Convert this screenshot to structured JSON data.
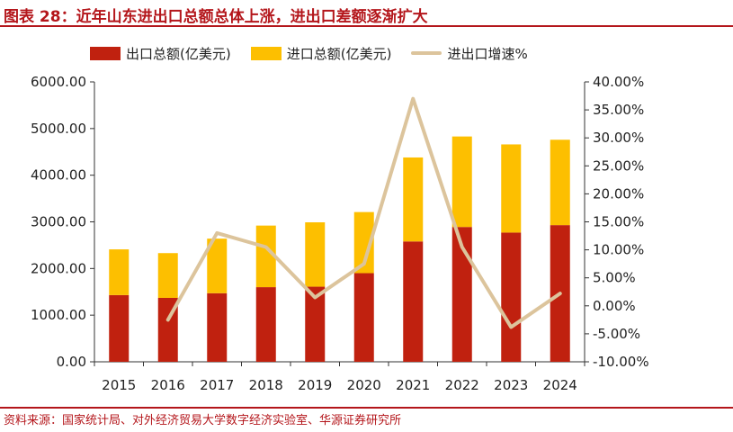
{
  "header": {
    "title": "图表 28：近年山东进出口总额总体上涨，进出口差额逐渐扩大"
  },
  "footer": {
    "source": "资料来源：国家统计局、对外经济贸易大学数字经济实验室、华源证券研究所"
  },
  "colors": {
    "accent": "#b4161b",
    "export": "#c0210f",
    "import": "#fdbf00",
    "growth": "#dcc49c",
    "axis": "#333333"
  },
  "chart_data": {
    "type": "bar",
    "stacked": true,
    "categories": [
      "2015",
      "2016",
      "2017",
      "2018",
      "2019",
      "2020",
      "2021",
      "2022",
      "2023",
      "2024"
    ],
    "series": [
      {
        "name": "出口总额(亿美元)",
        "type": "bar",
        "axis": "left",
        "values": [
          1430,
          1370,
          1470,
          1600,
          1610,
          1900,
          2580,
          2890,
          2770,
          2930
        ]
      },
      {
        "name": "进口总额(亿美元)",
        "type": "bar",
        "axis": "left",
        "values": [
          980,
          960,
          1170,
          1320,
          1380,
          1310,
          1800,
          1940,
          1890,
          1830
        ]
      },
      {
        "name": "进出口增速%",
        "type": "line",
        "axis": "right",
        "values": [
          null,
          -2.5,
          13.0,
          10.5,
          1.5,
          7.5,
          37.0,
          10.5,
          -3.8,
          2.2
        ]
      }
    ],
    "y_left": {
      "ylim": [
        0,
        6000
      ],
      "ticks": [
        "0.00",
        "1000.00",
        "2000.00",
        "3000.00",
        "4000.00",
        "5000.00",
        "6000.00"
      ]
    },
    "y_right": {
      "ylim": [
        -10,
        40
      ],
      "ticks": [
        "-10.00%",
        "-5.00%",
        "0.00%",
        "5.00%",
        "10.00%",
        "15.00%",
        "20.00%",
        "25.00%",
        "30.00%",
        "35.00%",
        "40.00%"
      ]
    },
    "grid": false,
    "legend_position": "top-left"
  }
}
